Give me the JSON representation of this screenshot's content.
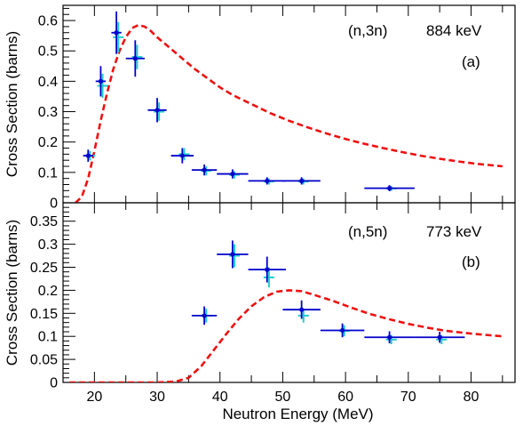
{
  "chart_data": [
    {
      "type": "scatter",
      "panel": "top",
      "reaction_label": "(n,3n)",
      "energy_label": "884 keV",
      "panel_letter": "(a)",
      "ylabel": "Cross Section (barns)",
      "xlabel": "",
      "xlim": [
        15,
        87
      ],
      "ylim": [
        0,
        0.65
      ],
      "yticks": [
        0,
        0.1,
        0.2,
        0.3,
        0.4,
        0.5,
        0.6
      ],
      "ytick_labels": [
        "0",
        "0.1",
        "0.2",
        "0.3",
        "0.4",
        "0.5",
        "0.6"
      ],
      "xticks": [
        20,
        30,
        40,
        50,
        60,
        70,
        80
      ],
      "xtick_labels": [],
      "grid": false,
      "colors": {
        "data": "#0000cc",
        "alt_data": "#22cccc",
        "model": "#ee1111"
      },
      "series": [
        {
          "role": "measurement",
          "points": [
            {
              "x": 19.0,
              "xerr": 0.8,
              "y": 0.155,
              "yerr": 0.02
            },
            {
              "x": 21.0,
              "xerr": 0.8,
              "y": 0.4,
              "yerr": 0.05
            },
            {
              "x": 23.5,
              "xerr": 0.8,
              "y": 0.56,
              "yerr": 0.07
            },
            {
              "x": 26.5,
              "xerr": 1.5,
              "y": 0.475,
              "yerr": 0.06
            },
            {
              "x": 30.0,
              "xerr": 1.5,
              "y": 0.305,
              "yerr": 0.04
            },
            {
              "x": 34.0,
              "xerr": 1.8,
              "y": 0.155,
              "yerr": 0.025
            },
            {
              "x": 37.5,
              "xerr": 2.0,
              "y": 0.108,
              "yerr": 0.018
            },
            {
              "x": 42.0,
              "xerr": 2.5,
              "y": 0.095,
              "yerr": 0.015
            },
            {
              "x": 47.5,
              "xerr": 3.0,
              "y": 0.072,
              "yerr": 0.012
            },
            {
              "x": 53.0,
              "xerr": 3.0,
              "y": 0.072,
              "yerr": 0.012
            },
            {
              "x": 67.0,
              "xerr": 4.0,
              "y": 0.048,
              "yerr": 0.01
            }
          ]
        },
        {
          "role": "measurement-alt",
          "points": [
            {
              "x": 19.3,
              "y": 0.155,
              "yerr": 0.015
            },
            {
              "x": 21.3,
              "y": 0.385,
              "yerr": 0.04
            },
            {
              "x": 23.8,
              "y": 0.545,
              "yerr": 0.05
            },
            {
              "x": 26.8,
              "y": 0.48,
              "yerr": 0.04
            },
            {
              "x": 30.3,
              "y": 0.3,
              "yerr": 0.03
            },
            {
              "x": 34.3,
              "y": 0.16,
              "yerr": 0.02
            },
            {
              "x": 37.8,
              "y": 0.105,
              "yerr": 0.015
            },
            {
              "x": 42.3,
              "y": 0.092,
              "yerr": 0.012
            },
            {
              "x": 47.8,
              "y": 0.07,
              "yerr": 0.01
            },
            {
              "x": 53.3,
              "y": 0.07,
              "yerr": 0.01
            },
            {
              "x": 67.3,
              "y": 0.047,
              "yerr": 0.008
            }
          ]
        },
        {
          "role": "model",
          "style": "dashed",
          "x": [
            17,
            18,
            19,
            20,
            21,
            22,
            23,
            24,
            25,
            26,
            27,
            28,
            29,
            30,
            32,
            34,
            36,
            38,
            40,
            42,
            45,
            48,
            51,
            54,
            57,
            60,
            63,
            66,
            69,
            72,
            75,
            78,
            81,
            85
          ],
          "y": [
            0.0,
            0.02,
            0.08,
            0.17,
            0.27,
            0.36,
            0.44,
            0.5,
            0.545,
            0.575,
            0.585,
            0.58,
            0.565,
            0.545,
            0.51,
            0.475,
            0.44,
            0.41,
            0.38,
            0.355,
            0.325,
            0.295,
            0.27,
            0.248,
            0.228,
            0.21,
            0.194,
            0.18,
            0.167,
            0.155,
            0.145,
            0.136,
            0.128,
            0.12
          ]
        }
      ]
    },
    {
      "type": "scatter",
      "panel": "bottom",
      "reaction_label": "(n,5n)",
      "energy_label": "773 keV",
      "panel_letter": "(b)",
      "ylabel": "Cross Section (barns)",
      "xlabel": "Neutron Energy (MeV)",
      "xlim": [
        15,
        87
      ],
      "ylim": [
        0,
        0.39
      ],
      "yticks": [
        0,
        0.05,
        0.1,
        0.15,
        0.2,
        0.25,
        0.3,
        0.35
      ],
      "ytick_labels": [
        "0",
        "0.05",
        "0.1",
        "0.15",
        "0.2",
        "0.25",
        "0.3",
        "0.35"
      ],
      "xticks": [
        20,
        30,
        40,
        50,
        60,
        70,
        80
      ],
      "xtick_labels": [
        "20",
        "30",
        "40",
        "50",
        "60",
        "70",
        "80"
      ],
      "grid": false,
      "colors": {
        "data": "#0000cc",
        "alt_data": "#22cccc",
        "model": "#ee1111"
      },
      "series": [
        {
          "role": "measurement",
          "points": [
            {
              "x": 37.5,
              "xerr": 2.0,
              "y": 0.145,
              "yerr": 0.02
            },
            {
              "x": 42.0,
              "xerr": 2.5,
              "y": 0.278,
              "yerr": 0.03
            },
            {
              "x": 47.5,
              "xerr": 3.0,
              "y": 0.245,
              "yerr": 0.028
            },
            {
              "x": 53.0,
              "xerr": 3.0,
              "y": 0.158,
              "yerr": 0.02
            },
            {
              "x": 59.5,
              "xerr": 3.5,
              "y": 0.113,
              "yerr": 0.015
            },
            {
              "x": 67.0,
              "xerr": 4.0,
              "y": 0.098,
              "yerr": 0.013
            },
            {
              "x": 75.0,
              "xerr": 4.0,
              "y": 0.098,
              "yerr": 0.012
            }
          ]
        },
        {
          "role": "measurement-alt",
          "points": [
            {
              "x": 37.8,
              "y": 0.145,
              "yerr": 0.015
            },
            {
              "x": 42.3,
              "y": 0.275,
              "yerr": 0.025
            },
            {
              "x": 47.8,
              "y": 0.228,
              "yerr": 0.022
            },
            {
              "x": 53.3,
              "y": 0.145,
              "yerr": 0.015
            },
            {
              "x": 59.8,
              "y": 0.112,
              "yerr": 0.012
            },
            {
              "x": 67.3,
              "y": 0.093,
              "yerr": 0.01
            },
            {
              "x": 75.3,
              "y": 0.093,
              "yerr": 0.01
            }
          ]
        },
        {
          "role": "model",
          "style": "dashed",
          "x": [
            16,
            20,
            25,
            30,
            33,
            35,
            37,
            39,
            41,
            43,
            45,
            47,
            49,
            51,
            53,
            55,
            58,
            61,
            64,
            67,
            70,
            73,
            76,
            80,
            85
          ],
          "y": [
            0.0,
            0.0,
            0.0,
            0.0,
            0.002,
            0.01,
            0.035,
            0.07,
            0.105,
            0.138,
            0.165,
            0.185,
            0.197,
            0.2,
            0.198,
            0.19,
            0.177,
            0.162,
            0.148,
            0.137,
            0.127,
            0.119,
            0.112,
            0.106,
            0.1
          ]
        }
      ]
    }
  ]
}
